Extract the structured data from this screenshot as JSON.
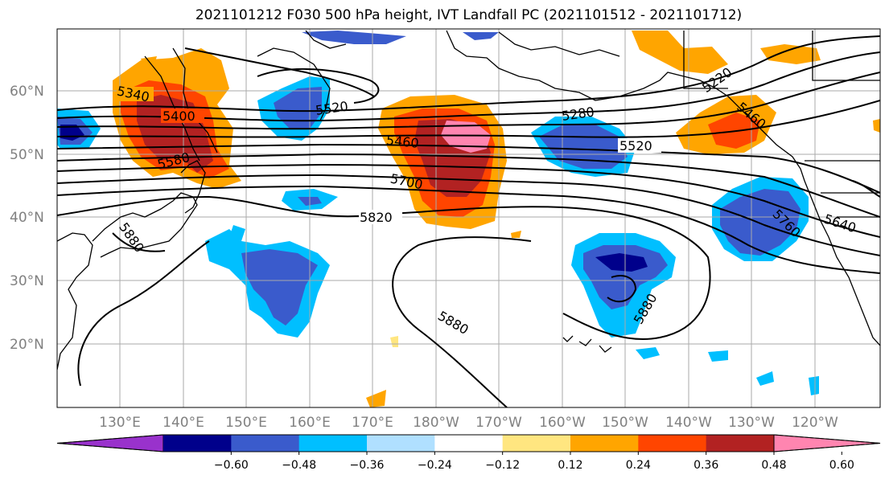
{
  "title": "2021101212 F030 500 hPa height, IVT Landfall PC (2021101512 - 2021101712)",
  "lat_labels": [
    "60°N",
    "50°N",
    "40°N",
    "30°N",
    "20°N"
  ],
  "lon_labels": [
    "130°E",
    "140°E",
    "150°E",
    "160°E",
    "170°E",
    "180°W",
    "170°W",
    "160°W",
    "150°W",
    "140°W",
    "130°W",
    "120°W"
  ],
  "colorbar": {
    "colors": [
      "#9932cc",
      "#00008b",
      "#3a5bcc",
      "#00bfff",
      "#b0e0ff",
      "#ffffff",
      "#ffe680",
      "#ffa500",
      "#ff4500",
      "#b22222",
      "#ff85b0"
    ],
    "labels": [
      "−0.60",
      "−0.48",
      "−0.36",
      "−0.24",
      "−0.12",
      "0.12",
      "0.24",
      "0.36",
      "0.48",
      "0.60"
    ]
  },
  "contour_labels": [
    "5340",
    "5400",
    "5580",
    "5520",
    "5460",
    "5280",
    "5520",
    "5220",
    "5700",
    "5820",
    "5880",
    "5880",
    "5880",
    "5760",
    "5640",
    "5460"
  ],
  "colors": {
    "grid": "#aaaaaa",
    "contour": "#000000",
    "coast": "#000000"
  }
}
